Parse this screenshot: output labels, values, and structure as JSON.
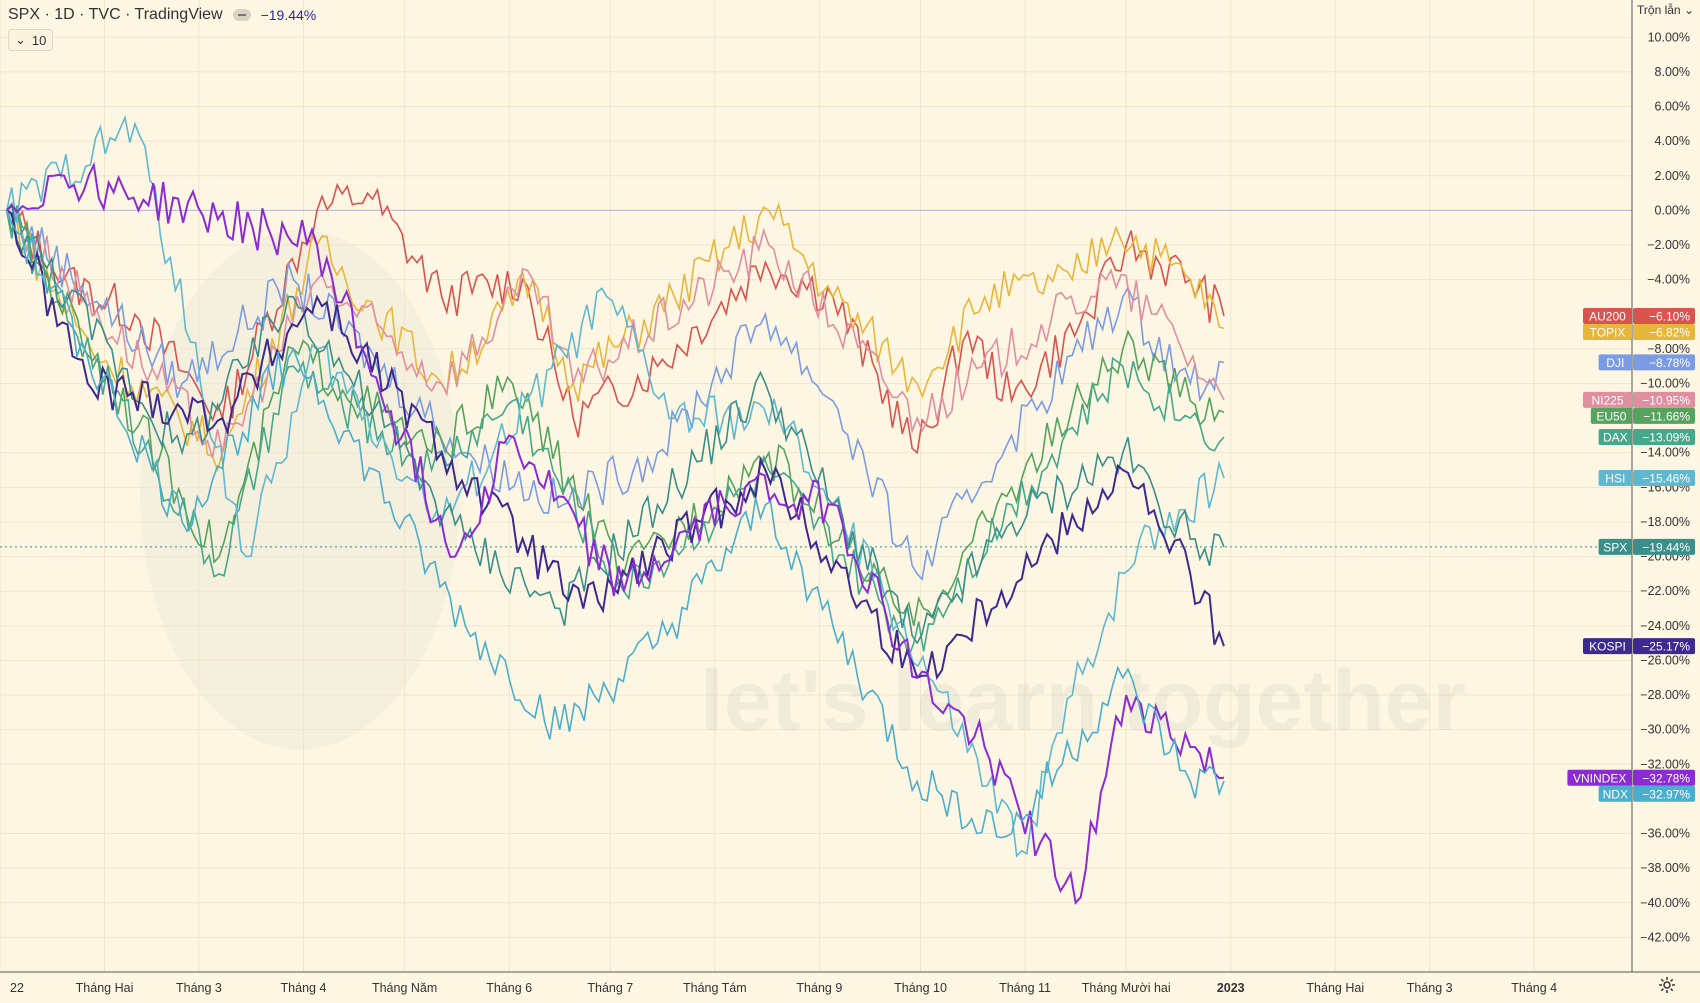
{
  "header": {
    "symbol": "SPX · 1D · TVC · TradingView",
    "change": "−19.44%",
    "collapse_count": "10"
  },
  "scale_mode": "Trộn lẫn",
  "watermark": "let's learn together",
  "colors": {
    "background": "#fdf6e3",
    "grid": "#efe6cc",
    "axis_text": "#333333"
  },
  "chart_data": {
    "type": "line",
    "y_unit": "%",
    "ylim": [
      -44,
      11
    ],
    "y_ticks": [
      "10.00%",
      "8.00%",
      "6.00%",
      "4.00%",
      "2.00%",
      "0.00%",
      "−2.00%",
      "−4.00%",
      "−8.00%",
      "−10.00%",
      "−14.00%",
      "−16.00%",
      "−18.00%",
      "−20.00%",
      "−22.00%",
      "−24.00%",
      "−26.00%",
      "−28.00%",
      "−30.00%",
      "−32.00%",
      "−36.00%",
      "−38.00%",
      "−40.00%",
      "−42.00%"
    ],
    "y_tick_values": [
      10,
      8,
      6,
      4,
      2,
      0,
      -2,
      -4,
      -8,
      -10,
      -14,
      -16,
      -18,
      -20,
      -22,
      -24,
      -26,
      -28,
      -30,
      -32,
      -36,
      -38,
      -40,
      -42
    ],
    "x_range": [
      "2022-01-01",
      "2023-04-30"
    ],
    "x_ticks": [
      {
        "label": "22",
        "date": "2022-01-01"
      },
      {
        "label": "Tháng Hai",
        "date": "2022-02-01"
      },
      {
        "label": "Tháng 3",
        "date": "2022-03-01"
      },
      {
        "label": "Tháng 4",
        "date": "2022-04-01"
      },
      {
        "label": "Tháng Năm",
        "date": "2022-05-01"
      },
      {
        "label": "Tháng 6",
        "date": "2022-06-01"
      },
      {
        "label": "Tháng 7",
        "date": "2022-07-01"
      },
      {
        "label": "Tháng Tám",
        "date": "2022-08-01"
      },
      {
        "label": "Tháng 9",
        "date": "2022-09-01"
      },
      {
        "label": "Tháng 10",
        "date": "2022-10-01"
      },
      {
        "label": "Tháng 11",
        "date": "2022-11-01"
      },
      {
        "label": "Tháng Mười hai",
        "date": "2022-12-01"
      },
      {
        "label": "2023",
        "date": "2023-01-01"
      },
      {
        "label": "Tháng Hai",
        "date": "2023-02-01"
      },
      {
        "label": "Tháng 3",
        "date": "2023-03-01"
      },
      {
        "label": "Tháng 4",
        "date": "2023-04-01"
      }
    ],
    "baseline": 0,
    "grid": true,
    "series": [
      {
        "name": "AU200",
        "color": "#d9534f",
        "last_label": "−6.10%",
        "values": [
          [
            "2022-01-03",
            0
          ],
          [
            "2022-01-20",
            -4
          ],
          [
            "2022-02-10",
            -6
          ],
          [
            "2022-03-08",
            -12
          ],
          [
            "2022-04-05",
            0
          ],
          [
            "2022-04-20",
            1
          ],
          [
            "2022-05-12",
            -5
          ],
          [
            "2022-06-05",
            -4
          ],
          [
            "2022-06-20",
            -12
          ],
          [
            "2022-07-15",
            -9
          ],
          [
            "2022-08-16",
            -3
          ],
          [
            "2022-09-05",
            -5
          ],
          [
            "2022-09-30",
            -14
          ],
          [
            "2022-10-15",
            -7
          ],
          [
            "2022-10-28",
            -11
          ],
          [
            "2022-11-20",
            -6
          ],
          [
            "2022-12-01",
            -2
          ],
          [
            "2022-12-20",
            -4
          ],
          [
            "2022-12-30",
            -6.1
          ]
        ]
      },
      {
        "name": "TOPIX",
        "color": "#e8b63a",
        "last_label": "−6.82%",
        "values": [
          [
            "2022-01-03",
            0
          ],
          [
            "2022-01-28",
            -8
          ],
          [
            "2022-03-08",
            -14
          ],
          [
            "2022-04-05",
            -2
          ],
          [
            "2022-05-12",
            -10
          ],
          [
            "2022-06-08",
            -4
          ],
          [
            "2022-06-20",
            -10
          ],
          [
            "2022-07-20",
            -5
          ],
          [
            "2022-08-17",
            0
          ],
          [
            "2022-09-05",
            -5
          ],
          [
            "2022-09-30",
            -10
          ],
          [
            "2022-10-20",
            -5
          ],
          [
            "2022-11-15",
            -4
          ],
          [
            "2022-11-28",
            -1
          ],
          [
            "2022-12-20",
            -4
          ],
          [
            "2022-12-30",
            -6.82
          ]
        ]
      },
      {
        "name": "DJI",
        "color": "#7b9ce4",
        "last_label": "−8.78%",
        "values": [
          [
            "2022-01-03",
            0
          ],
          [
            "2022-02-24",
            -10
          ],
          [
            "2022-03-29",
            -4
          ],
          [
            "2022-05-19",
            -14
          ],
          [
            "2022-06-17",
            -17
          ],
          [
            "2022-07-15",
            -14
          ],
          [
            "2022-08-16",
            -6
          ],
          [
            "2022-09-05",
            -11
          ],
          [
            "2022-09-30",
            -21
          ],
          [
            "2022-10-28",
            -13
          ],
          [
            "2022-11-30",
            -5
          ],
          [
            "2022-12-20",
            -10
          ],
          [
            "2022-12-30",
            -8.78
          ]
        ]
      },
      {
        "name": "NI225",
        "color": "#e08fa0",
        "last_label": "−10.95%",
        "values": [
          [
            "2022-01-03",
            0
          ],
          [
            "2022-03-08",
            -14
          ],
          [
            "2022-04-05",
            -4
          ],
          [
            "2022-05-12",
            -10
          ],
          [
            "2022-06-08",
            -4
          ],
          [
            "2022-06-20",
            -10
          ],
          [
            "2022-08-17",
            -2
          ],
          [
            "2022-09-30",
            -12
          ],
          [
            "2022-11-25",
            -4
          ],
          [
            "2022-12-10",
            -6
          ],
          [
            "2022-12-30",
            -10.95
          ]
        ]
      },
      {
        "name": "EU50",
        "color": "#55a35c",
        "last_label": "−11.66%",
        "values": [
          [
            "2022-01-03",
            0
          ],
          [
            "2022-03-07",
            -20
          ],
          [
            "2022-03-29",
            -8
          ],
          [
            "2022-05-09",
            -14
          ],
          [
            "2022-06-02",
            -10
          ],
          [
            "2022-07-05",
            -21
          ],
          [
            "2022-08-17",
            -14
          ],
          [
            "2022-09-29",
            -24
          ],
          [
            "2022-10-28",
            -16
          ],
          [
            "2022-11-30",
            -8
          ],
          [
            "2022-12-20",
            -11
          ],
          [
            "2022-12-30",
            -11.66
          ]
        ]
      },
      {
        "name": "DAX",
        "color": "#45a88a",
        "last_label": "−13.09%",
        "values": [
          [
            "2022-01-03",
            0
          ],
          [
            "2022-03-07",
            -21
          ],
          [
            "2022-03-29",
            -9
          ],
          [
            "2022-05-09",
            -15
          ],
          [
            "2022-06-02",
            -11
          ],
          [
            "2022-07-05",
            -22
          ],
          [
            "2022-08-17",
            -15
          ],
          [
            "2022-09-29",
            -25
          ],
          [
            "2022-10-28",
            -17
          ],
          [
            "2022-11-30",
            -9
          ],
          [
            "2022-12-20",
            -12
          ],
          [
            "2022-12-30",
            -13.09
          ]
        ]
      },
      {
        "name": "HSI",
        "color": "#5fb8d0",
        "last_label": "−15.46%",
        "values": [
          [
            "2022-01-03",
            0
          ],
          [
            "2022-02-10",
            5
          ],
          [
            "2022-03-15",
            -20
          ],
          [
            "2022-04-05",
            -8
          ],
          [
            "2022-05-12",
            -18
          ],
          [
            "2022-06-30",
            -5
          ],
          [
            "2022-07-20",
            -12
          ],
          [
            "2022-08-20",
            -12
          ],
          [
            "2022-09-20",
            -22
          ],
          [
            "2022-10-31",
            -37
          ],
          [
            "2022-11-15",
            -28
          ],
          [
            "2022-12-05",
            -19
          ],
          [
            "2022-12-30",
            -15.46
          ]
        ]
      },
      {
        "name": "SPX",
        "color": "#3a8f8a",
        "last_label": "−19.44%",
        "values": [
          [
            "2022-01-03",
            0
          ],
          [
            "2022-02-24",
            -14
          ],
          [
            "2022-03-29",
            -5
          ],
          [
            "2022-05-19",
            -19
          ],
          [
            "2022-06-16",
            -23
          ],
          [
            "2022-07-15",
            -17
          ],
          [
            "2022-08-16",
            -10
          ],
          [
            "2022-09-05",
            -17
          ],
          [
            "2022-09-30",
            -25
          ],
          [
            "2022-10-28",
            -18
          ],
          [
            "2022-11-30",
            -14
          ],
          [
            "2022-12-20",
            -19
          ],
          [
            "2022-12-30",
            -19.44
          ]
        ]
      },
      {
        "name": "KOSPI",
        "color": "#3d2a8f",
        "last_label": "−25.17%",
        "values": [
          [
            "2022-01-03",
            0
          ],
          [
            "2022-01-27",
            -10
          ],
          [
            "2022-03-08",
            -12
          ],
          [
            "2022-04-05",
            -5
          ],
          [
            "2022-05-12",
            -14
          ],
          [
            "2022-06-23",
            -23
          ],
          [
            "2022-07-28",
            -18
          ],
          [
            "2022-08-16",
            -15
          ],
          [
            "2022-09-30",
            -27
          ],
          [
            "2022-10-25",
            -22
          ],
          [
            "2022-11-30",
            -15
          ],
          [
            "2022-12-20",
            -21
          ],
          [
            "2022-12-30",
            -25.17
          ]
        ]
      },
      {
        "name": "VNINDEX",
        "color": "#8a2bd4",
        "last_label": "−32.78%",
        "values": [
          [
            "2022-01-03",
            0
          ],
          [
            "2022-01-20",
            2
          ],
          [
            "2022-04-05",
            -2
          ],
          [
            "2022-05-16",
            -20
          ],
          [
            "2022-06-01",
            -13
          ],
          [
            "2022-07-05",
            -22
          ],
          [
            "2022-08-10",
            -16
          ],
          [
            "2022-09-05",
            -17
          ],
          [
            "2022-09-30",
            -27
          ],
          [
            "2022-10-20",
            -31
          ],
          [
            "2022-11-16",
            -40
          ],
          [
            "2022-12-01",
            -28
          ],
          [
            "2022-12-20",
            -31
          ],
          [
            "2022-12-30",
            -32.78
          ]
        ]
      },
      {
        "name": "NDX",
        "color": "#4aaecc",
        "last_label": "−32.97%",
        "values": [
          [
            "2022-01-03",
            0
          ],
          [
            "2022-02-24",
            -18
          ],
          [
            "2022-03-29",
            -8
          ],
          [
            "2022-05-19",
            -24
          ],
          [
            "2022-06-16",
            -30
          ],
          [
            "2022-07-15",
            -25
          ],
          [
            "2022-08-16",
            -17
          ],
          [
            "2022-09-05",
            -24
          ],
          [
            "2022-09-30",
            -33
          ],
          [
            "2022-10-28",
            -36
          ],
          [
            "2022-11-30",
            -27
          ],
          [
            "2022-12-20",
            -33
          ],
          [
            "2022-12-30",
            -32.97
          ]
        ]
      }
    ]
  }
}
